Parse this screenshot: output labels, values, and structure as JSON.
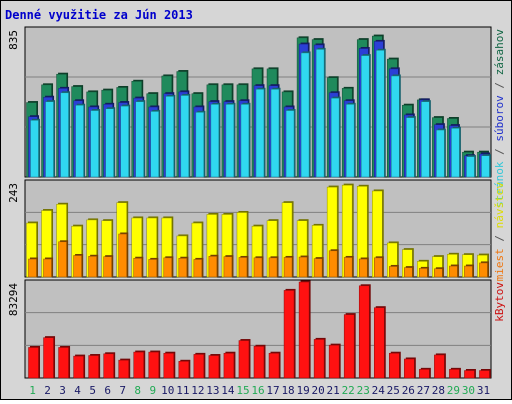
{
  "title": "Denné využitie za Jún 2013",
  "day_colors": {
    "weekday": "#1a1a66",
    "weekend": "#22aa55"
  },
  "chart_data": [
    {
      "type": "bar",
      "name": "traffic-panel",
      "ymax_label": "835",
      "ymax": 835,
      "legend": [
        {
          "text": "stránok",
          "color": "#33c8d8"
        },
        {
          "text": " / ",
          "color": "#555555"
        },
        {
          "text": "súborov",
          "color": "#2233cc"
        },
        {
          "text": " / ",
          "color": "#555555"
        },
        {
          "text": "zásahov",
          "color": "#116644"
        }
      ],
      "series": [
        {
          "key": "zasahov",
          "color": "#1f8a5c",
          "values": [
            420,
            520,
            580,
            510,
            480,
            490,
            505,
            540,
            470,
            570,
            595,
            470,
            520,
            520,
            520,
            610,
            610,
            480,
            785,
            775,
            560,
            500,
            775,
            795,
            665,
            405,
            435,
            335,
            330,
            140,
            140
          ]
        },
        {
          "key": "suborov",
          "color": "#2b3fd6",
          "values": [
            340,
            450,
            500,
            430,
            395,
            410,
            420,
            445,
            395,
            470,
            480,
            395,
            425,
            425,
            430,
            515,
            515,
            395,
            750,
            745,
            475,
            430,
            725,
            765,
            610,
            350,
            435,
            295,
            290,
            120,
            130
          ]
        },
        {
          "key": "stranok",
          "color": "#30d8f0",
          "values": [
            320,
            425,
            475,
            405,
            375,
            385,
            400,
            425,
            370,
            455,
            460,
            365,
            410,
            410,
            410,
            495,
            495,
            375,
            700,
            720,
            445,
            410,
            685,
            715,
            570,
            335,
            425,
            265,
            275,
            115,
            120
          ]
        }
      ]
    },
    {
      "type": "bar",
      "name": "visits-panel",
      "ymax_label": "243",
      "ymax": 243,
      "legend": [
        {
          "text": "miest",
          "color": "#ee7711"
        },
        {
          "text": " / ",
          "color": "#555555"
        },
        {
          "text": "návštev",
          "color": "#dddd00"
        }
      ],
      "series": [
        {
          "key": "navstev",
          "color": "#ffff00",
          "values": [
            138,
            170,
            186,
            130,
            146,
            144,
            190,
            151,
            151,
            151,
            105,
            138,
            160,
            160,
            165,
            130,
            144,
            190,
            144,
            132,
            230,
            235,
            232,
            220,
            87,
            70,
            40,
            52,
            58,
            57,
            56
          ]
        },
        {
          "key": "miest",
          "color": "#ff8c00",
          "values": [
            46,
            46,
            90,
            55,
            53,
            52,
            110,
            48,
            45,
            49,
            48,
            45,
            53,
            52,
            50,
            49,
            49,
            50,
            51,
            47,
            67,
            50,
            46,
            49,
            27,
            24,
            22,
            21,
            28,
            28,
            36
          ]
        }
      ]
    },
    {
      "type": "bar",
      "name": "kbytes-panel",
      "ymax_label": "83294",
      "ymax": 83294,
      "legend": [
        {
          "text": "kBytov",
          "color": "#cc1111"
        }
      ],
      "series": [
        {
          "key": "kbytov",
          "color": "#ff1111",
          "values": [
            26500,
            35000,
            26500,
            19000,
            19500,
            21000,
            15500,
            22500,
            22500,
            21500,
            14500,
            20500,
            19500,
            21500,
            32500,
            27500,
            21500,
            76000,
            83294,
            33500,
            28500,
            55000,
            80000,
            61000,
            21500,
            16500,
            7500,
            20000,
            7500,
            6500,
            6500
          ]
        }
      ]
    }
  ],
  "days": [
    {
      "label": "1",
      "weekend": true
    },
    {
      "label": "2",
      "weekend": false
    },
    {
      "label": "3",
      "weekend": false
    },
    {
      "label": "4",
      "weekend": false
    },
    {
      "label": "5",
      "weekend": false
    },
    {
      "label": "6",
      "weekend": false
    },
    {
      "label": "7",
      "weekend": false
    },
    {
      "label": "8",
      "weekend": true
    },
    {
      "label": "9",
      "weekend": true
    },
    {
      "label": "10",
      "weekend": false
    },
    {
      "label": "11",
      "weekend": false
    },
    {
      "label": "12",
      "weekend": false
    },
    {
      "label": "13",
      "weekend": false
    },
    {
      "label": "14",
      "weekend": false
    },
    {
      "label": "15",
      "weekend": true
    },
    {
      "label": "16",
      "weekend": true
    },
    {
      "label": "17",
      "weekend": false
    },
    {
      "label": "18",
      "weekend": false
    },
    {
      "label": "19",
      "weekend": false
    },
    {
      "label": "20",
      "weekend": false
    },
    {
      "label": "21",
      "weekend": false
    },
    {
      "label": "22",
      "weekend": true
    },
    {
      "label": "23",
      "weekend": true
    },
    {
      "label": "24",
      "weekend": false
    },
    {
      "label": "25",
      "weekend": false
    },
    {
      "label": "26",
      "weekend": false
    },
    {
      "label": "27",
      "weekend": false
    },
    {
      "label": "28",
      "weekend": false
    },
    {
      "label": "29",
      "weekend": true
    },
    {
      "label": "30",
      "weekend": true
    },
    {
      "label": "31",
      "weekend": false
    }
  ]
}
